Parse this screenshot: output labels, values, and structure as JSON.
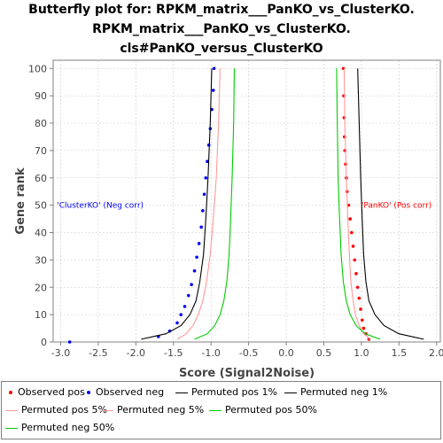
{
  "chart_data": {
    "type": "scatter",
    "title": [
      "Butterfly plot for: RPKM_matrix___PanKO_vs_ClusterKO.",
      "RPKM_matrix___PanKO_vs_ClusterKO.",
      "cls#PanKO_versus_ClusterKO"
    ],
    "xlabel": "Score (Signal2Noise)",
    "ylabel": "Gene rank",
    "xlim": [
      -3.1,
      2.05
    ],
    "ylim": [
      0,
      103
    ],
    "xticks": [
      "-3.0",
      "-2.5",
      "-2.0",
      "-1.5",
      "-1.0",
      "-0.5",
      "0.0",
      "0.5",
      "1.0",
      "1.5",
      "2.0"
    ],
    "xtick_values": [
      -3.0,
      -2.5,
      -2.0,
      -1.5,
      -1.0,
      -0.5,
      0.0,
      0.5,
      1.0,
      1.5,
      2.0
    ],
    "yticks": [
      "0",
      "10",
      "20",
      "30",
      "40",
      "50",
      "60",
      "70",
      "80",
      "90",
      "100"
    ],
    "ytick_values": [
      0,
      10,
      20,
      30,
      40,
      50,
      60,
      70,
      80,
      90,
      100
    ],
    "grid": true,
    "legend_position": "bottom",
    "annotations": [
      {
        "text": "'ClusterKO' (Neg corr)",
        "x": -3.05,
        "y": 50,
        "color": "#0000ff"
      },
      {
        "text": "'PanKO' (Pos corr)",
        "x": 1.0,
        "y": 50,
        "color": "#ff0000"
      }
    ],
    "series": [
      {
        "name": "Observed pos",
        "kind": "points",
        "color": "#ff0000",
        "x": [
          1.1,
          1.06,
          1.03,
          1.01,
          0.99,
          0.97,
          0.95,
          0.93,
          0.91,
          0.89,
          0.87,
          0.85,
          0.83,
          0.81,
          0.8,
          0.79,
          0.78,
          0.775,
          0.77,
          0.765,
          0.76
        ],
        "y": [
          1,
          3,
          5,
          8,
          12,
          16,
          20,
          25,
          30,
          35,
          40,
          45,
          50,
          55,
          60,
          65,
          70,
          75,
          82,
          90,
          100
        ]
      },
      {
        "name": "Observed neg",
        "kind": "points",
        "color": "#0000ff",
        "x": [
          -2.88,
          -1.7,
          -1.55,
          -1.45,
          -1.4,
          -1.35,
          -1.3,
          -1.26,
          -1.22,
          -1.19,
          -1.16,
          -1.13,
          -1.11,
          -1.09,
          -1.07,
          -1.05,
          -1.03,
          -1.01,
          -0.99,
          -0.97,
          -0.96
        ],
        "y": [
          0,
          2,
          4,
          7,
          10,
          13,
          17,
          21,
          26,
          31,
          36,
          42,
          48,
          54,
          60,
          66,
          72,
          78,
          85,
          92,
          100
        ]
      },
      {
        "name": "Permuted pos 1%",
        "kind": "line",
        "color": "#000000",
        "x": [
          1.83,
          1.5,
          1.3,
          1.18,
          1.1,
          1.06,
          1.03,
          1.01,
          0.99,
          0.97,
          0.95
        ],
        "y": [
          1,
          3,
          6,
          10,
          15,
          22,
          32,
          45,
          60,
          80,
          100
        ]
      },
      {
        "name": "Permuted neg 1%",
        "kind": "line",
        "color": "#000000",
        "x": [
          -1.93,
          -1.6,
          -1.4,
          -1.28,
          -1.2,
          -1.15,
          -1.1,
          -1.07,
          -1.04,
          -1.01,
          -0.99
        ],
        "y": [
          1,
          3,
          6,
          10,
          15,
          22,
          32,
          45,
          60,
          80,
          100
        ]
      },
      {
        "name": "Permuted pos 5%",
        "kind": "line",
        "color": "#ff9999",
        "x": [
          1.12,
          1.03,
          0.97,
          0.92,
          0.89,
          0.86,
          0.84,
          0.82,
          0.8,
          0.78,
          0.77
        ],
        "y": [
          1,
          3,
          6,
          10,
          15,
          22,
          32,
          45,
          60,
          80,
          100
        ]
      },
      {
        "name": "Permuted neg 5%",
        "kind": "line",
        "color": "#ff9999",
        "x": [
          -1.45,
          -1.33,
          -1.24,
          -1.17,
          -1.11,
          -1.06,
          -1.01,
          -0.97,
          -0.93,
          -0.9,
          -0.88
        ],
        "y": [
          1,
          3,
          6,
          10,
          15,
          22,
          32,
          45,
          60,
          80,
          100
        ]
      },
      {
        "name": "Permuted pos 50%",
        "kind": "line",
        "color": "#00cc00",
        "x": [
          1.25,
          1.05,
          0.93,
          0.85,
          0.8,
          0.76,
          0.73,
          0.71,
          0.69,
          0.68,
          0.67
        ],
        "y": [
          1,
          3,
          6,
          10,
          15,
          22,
          32,
          45,
          60,
          80,
          100
        ]
      },
      {
        "name": "Permuted neg 50%",
        "kind": "line",
        "color": "#00cc00",
        "x": [
          -1.22,
          -1.05,
          -0.95,
          -0.88,
          -0.83,
          -0.79,
          -0.76,
          -0.74,
          -0.72,
          -0.7,
          -0.69
        ],
        "y": [
          1,
          3,
          6,
          10,
          15,
          22,
          32,
          45,
          60,
          80,
          100
        ]
      }
    ]
  }
}
